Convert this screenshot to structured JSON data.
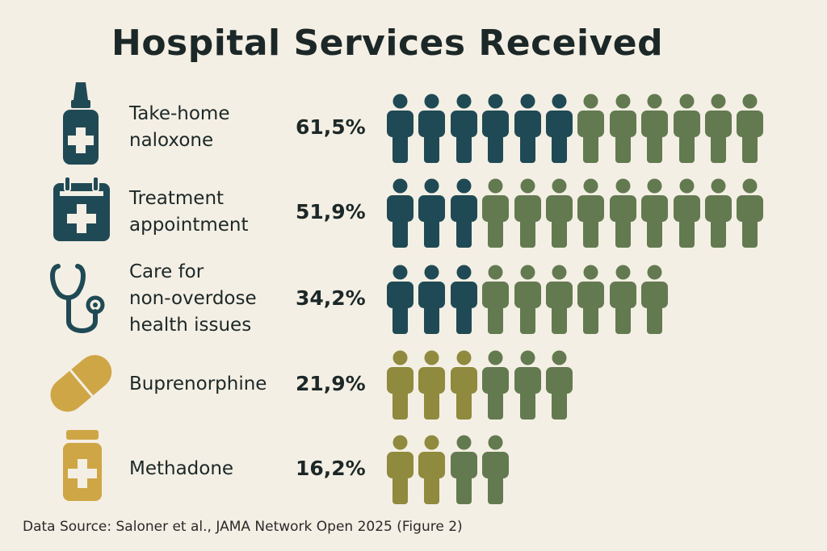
{
  "chart_data": {
    "type": "pictogram",
    "title": "Hospital Services Received",
    "categories": [
      "Take-home naloxone",
      "Treatment appointment",
      "Care for non-overdose health issues",
      "Buprenorphine",
      "Methadone"
    ],
    "values_percent": [
      61.5,
      51.9,
      34.2,
      21.9,
      16.2
    ],
    "value_labels": [
      "61,5%",
      "51,9%",
      "34,2%",
      "21,9%",
      "16,2%"
    ],
    "rows": [
      {
        "label_lines": [
          "Take-home",
          "naloxone"
        ],
        "icon": "nasal-spray-icon",
        "icon_color": "#1f4a55",
        "pictogram": [
          {
            "count": 6,
            "color": "#1f4a55"
          },
          {
            "count": 6,
            "color": "#637a50"
          }
        ]
      },
      {
        "label_lines": [
          "Treatment",
          "appointment"
        ],
        "icon": "calendar-plus-icon",
        "icon_color": "#1f4a55",
        "pictogram": [
          {
            "count": 3,
            "color": "#1f4a55"
          },
          {
            "count": 9,
            "color": "#637a50"
          }
        ]
      },
      {
        "label_lines": [
          "Care for",
          "non-overdose",
          "health issues"
        ],
        "icon": "stethoscope-icon",
        "icon_color": "#1f4a55",
        "pictogram": [
          {
            "count": 3,
            "color": "#1f4a55"
          },
          {
            "count": 6,
            "color": "#637a50"
          }
        ]
      },
      {
        "label_lines": [
          "Buprenorphine"
        ],
        "icon": "pill-capsule-icon",
        "icon_color": "#cfa646",
        "pictogram": [
          {
            "count": 3,
            "color": "#8f8a3d"
          },
          {
            "count": 3,
            "color": "#637a50"
          }
        ]
      },
      {
        "label_lines": [
          "Methadone"
        ],
        "icon": "medicine-bottle-icon",
        "icon_color": "#cfa646",
        "pictogram": [
          {
            "count": 2,
            "color": "#8f8a3d"
          },
          {
            "count": 2,
            "color": "#637a50"
          }
        ]
      }
    ]
  },
  "source": "Data Source: Saloner et al., JAMA Network Open 2025 (Figure 2)",
  "colors": {
    "background": "#f4efe4",
    "dark_teal": "#1f4a55",
    "green": "#637a50",
    "olive": "#8f8a3d",
    "gold": "#cfa646"
  }
}
